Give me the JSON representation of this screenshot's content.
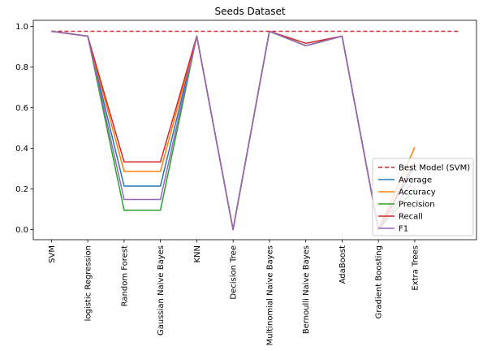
{
  "chart_data": {
    "type": "line",
    "title": "Seeds Dataset",
    "xlabel": "",
    "ylabel": "",
    "categories": [
      "SVM",
      "logistic Regression",
      "Random Forest",
      "Gaussian Naive Bayes",
      "KNN",
      "Decision Tree",
      "Multinomial Naive Bayes",
      "Bernoulli Naive Bayes",
      "AdaBoost",
      "Gradient Boosting",
      "Extra Trees"
    ],
    "ylim": [
      -0.05,
      1.03
    ],
    "yticks": [
      0.0,
      0.2,
      0.4,
      0.6,
      0.8,
      1.0
    ],
    "ytick_labels": [
      "0.0",
      "0.2",
      "0.4",
      "0.6",
      "0.8",
      "1.0"
    ],
    "grid": false,
    "legend_position": "lower-right",
    "reference_line": {
      "name": "Best Model (SVM)",
      "y": 0.976,
      "x_start": 0,
      "x_end": 11.2,
      "color": "#d62728",
      "dashed": true
    },
    "series": [
      {
        "name": "Average",
        "color": "#1f77b4",
        "values": [
          0.976,
          0.952,
          0.214,
          0.214,
          0.952,
          0.0,
          0.976,
          0.905,
          0.952,
          0.0,
          0.31
        ]
      },
      {
        "name": "Accuracy",
        "color": "#ff7f0e",
        "values": [
          0.976,
          0.952,
          0.286,
          0.286,
          0.952,
          0.0,
          0.976,
          0.905,
          0.952,
          0.0,
          0.405
        ]
      },
      {
        "name": "Precision",
        "color": "#2ca02c",
        "values": [
          0.976,
          0.952,
          0.095,
          0.095,
          0.952,
          0.0,
          0.976,
          0.905,
          0.952,
          0.0,
          0.2
        ]
      },
      {
        "name": "Recall",
        "color": "#d62728",
        "values": [
          0.976,
          0.952,
          0.333,
          0.333,
          0.952,
          0.0,
          0.976,
          0.917,
          0.952,
          0.0,
          0.33
        ]
      },
      {
        "name": "F1",
        "color": "#9467bd",
        "values": [
          0.976,
          0.952,
          0.148,
          0.148,
          0.952,
          0.0,
          0.976,
          0.905,
          0.952,
          0.0,
          0.25
        ]
      }
    ]
  }
}
